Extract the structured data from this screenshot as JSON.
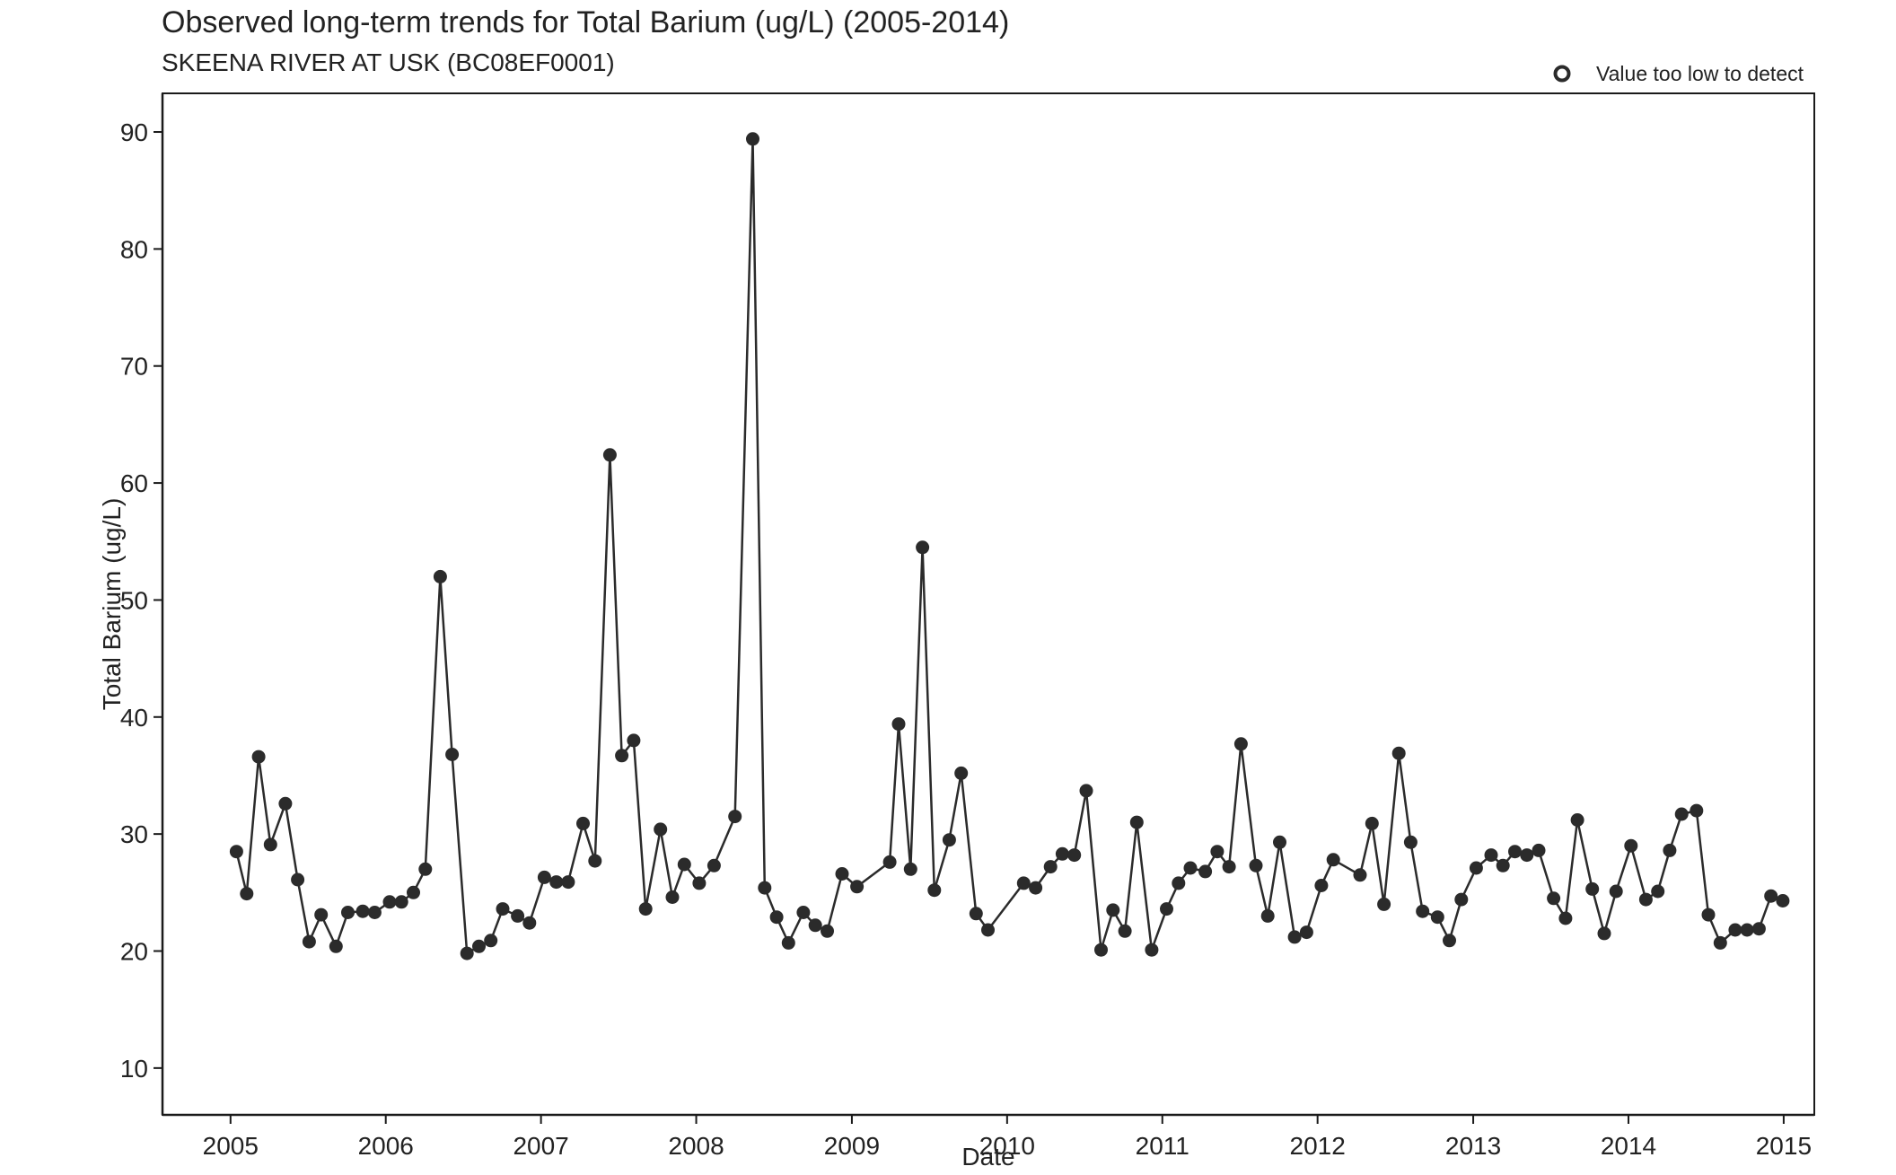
{
  "chart_data": {
    "type": "line",
    "title": "Observed long-term trends for Total Barium (ug/L) (2005-2014)",
    "subtitle": "SKEENA RIVER AT USK (BC08EF0001)",
    "xlabel": "Date",
    "ylabel": "Total Barium (ug/L)",
    "xlim": [
      "2004-07-25",
      "2015-03-14"
    ],
    "ylim": [
      6,
      93.3
    ],
    "x_ticks": [
      "2005",
      "2006",
      "2007",
      "2008",
      "2009",
      "2010",
      "2011",
      "2012",
      "2013",
      "2014",
      "2015"
    ],
    "y_ticks": [
      10,
      20,
      30,
      40,
      50,
      60,
      70,
      80,
      90
    ],
    "grid": false,
    "legend": {
      "position": "top-right",
      "entries": [
        {
          "label": "Value too low to detect",
          "marker": "open-circle"
        }
      ]
    },
    "colors": {
      "series": "#2b2b2b",
      "axis": "#1a1a1a"
    },
    "series": [
      {
        "points": [
          [
            "2005-01-15",
            28.5
          ],
          [
            "2005-02-08",
            24.9
          ],
          [
            "2005-03-08",
            36.6
          ],
          [
            "2005-04-05",
            29.1
          ],
          [
            "2005-05-10",
            32.6
          ],
          [
            "2005-06-08",
            26.1
          ],
          [
            "2005-07-05",
            20.8
          ],
          [
            "2005-08-02",
            23.1
          ],
          [
            "2005-09-06",
            20.4
          ],
          [
            "2005-10-04",
            23.3
          ],
          [
            "2005-11-08",
            23.4
          ],
          [
            "2005-12-06",
            23.3
          ],
          [
            "2006-01-10",
            24.2
          ],
          [
            "2006-02-07",
            24.2
          ],
          [
            "2006-03-07",
            25.0
          ],
          [
            "2006-04-04",
            27.0
          ],
          [
            "2006-05-09",
            52.0
          ],
          [
            "2006-06-06",
            36.8
          ],
          [
            "2006-07-11",
            19.8
          ],
          [
            "2006-08-08",
            20.4
          ],
          [
            "2006-09-05",
            20.9
          ],
          [
            "2006-10-03",
            23.6
          ],
          [
            "2006-11-07",
            23.0
          ],
          [
            "2006-12-05",
            22.4
          ],
          [
            "2007-01-09",
            26.3
          ],
          [
            "2007-02-06",
            25.9
          ],
          [
            "2007-03-06",
            25.9
          ],
          [
            "2007-04-10",
            30.9
          ],
          [
            "2007-05-08",
            27.7
          ],
          [
            "2007-06-12",
            62.4
          ],
          [
            "2007-07-10",
            36.7
          ],
          [
            "2007-08-07",
            38.0
          ],
          [
            "2007-09-04",
            23.6
          ],
          [
            "2007-10-09",
            30.4
          ],
          [
            "2007-11-06",
            24.6
          ],
          [
            "2007-12-04",
            27.4
          ],
          [
            "2008-01-08",
            25.8
          ],
          [
            "2008-02-12",
            27.3
          ],
          [
            "2008-04-01",
            31.5
          ],
          [
            "2008-05-13",
            89.4
          ],
          [
            "2008-06-10",
            25.4
          ],
          [
            "2008-07-08",
            22.9
          ],
          [
            "2008-08-05",
            20.7
          ],
          [
            "2008-09-09",
            23.3
          ],
          [
            "2008-10-07",
            22.2
          ],
          [
            "2008-11-04",
            21.7
          ],
          [
            "2008-12-09",
            26.6
          ],
          [
            "2009-01-13",
            25.5
          ],
          [
            "2009-03-31",
            27.6
          ],
          [
            "2009-04-21",
            39.4
          ],
          [
            "2009-05-19",
            27.0
          ],
          [
            "2009-06-16",
            54.5
          ],
          [
            "2009-07-14",
            25.2
          ],
          [
            "2009-08-18",
            29.5
          ],
          [
            "2009-09-15",
            35.2
          ],
          [
            "2009-10-20",
            23.2
          ],
          [
            "2009-11-17",
            21.8
          ],
          [
            "2010-02-09",
            25.8
          ],
          [
            "2010-03-09",
            25.4
          ],
          [
            "2010-04-13",
            27.2
          ],
          [
            "2010-05-11",
            28.3
          ],
          [
            "2010-06-08",
            28.2
          ],
          [
            "2010-07-06",
            33.7
          ],
          [
            "2010-08-10",
            20.1
          ],
          [
            "2010-09-07",
            23.5
          ],
          [
            "2010-10-05",
            21.7
          ],
          [
            "2010-11-02",
            31.0
          ],
          [
            "2010-12-07",
            20.1
          ],
          [
            "2011-01-11",
            23.6
          ],
          [
            "2011-02-08",
            25.8
          ],
          [
            "2011-03-08",
            27.1
          ],
          [
            "2011-04-12",
            26.8
          ],
          [
            "2011-05-10",
            28.5
          ],
          [
            "2011-06-07",
            27.2
          ],
          [
            "2011-07-05",
            37.7
          ],
          [
            "2011-08-09",
            27.3
          ],
          [
            "2011-09-06",
            23.0
          ],
          [
            "2011-10-04",
            29.3
          ],
          [
            "2011-11-08",
            21.2
          ],
          [
            "2011-12-06",
            21.6
          ],
          [
            "2012-01-10",
            25.6
          ],
          [
            "2012-02-07",
            27.8
          ],
          [
            "2012-04-10",
            26.5
          ],
          [
            "2012-05-08",
            30.9
          ],
          [
            "2012-06-05",
            24.0
          ],
          [
            "2012-07-10",
            36.9
          ],
          [
            "2012-08-07",
            29.3
          ],
          [
            "2012-09-04",
            23.4
          ],
          [
            "2012-10-09",
            22.9
          ],
          [
            "2012-11-06",
            20.9
          ],
          [
            "2012-12-04",
            24.4
          ],
          [
            "2013-01-08",
            27.1
          ],
          [
            "2013-02-12",
            28.2
          ],
          [
            "2013-03-12",
            27.3
          ],
          [
            "2013-04-09",
            28.5
          ],
          [
            "2013-05-07",
            28.2
          ],
          [
            "2013-06-04",
            28.6
          ],
          [
            "2013-07-09",
            24.5
          ],
          [
            "2013-08-06",
            22.8
          ],
          [
            "2013-09-03",
            31.2
          ],
          [
            "2013-10-08",
            25.3
          ],
          [
            "2013-11-05",
            21.5
          ],
          [
            "2013-12-03",
            25.1
          ],
          [
            "2014-01-07",
            29.0
          ],
          [
            "2014-02-11",
            24.4
          ],
          [
            "2014-03-11",
            25.1
          ],
          [
            "2014-04-08",
            28.6
          ],
          [
            "2014-05-06",
            31.7
          ],
          [
            "2014-06-10",
            32.0
          ],
          [
            "2014-07-08",
            23.1
          ],
          [
            "2014-08-05",
            20.7
          ],
          [
            "2014-09-09",
            21.8
          ],
          [
            "2014-10-07",
            21.8
          ],
          [
            "2014-11-04",
            21.9
          ],
          [
            "2014-12-02",
            24.7
          ],
          [
            "2014-12-30",
            24.3
          ]
        ]
      }
    ]
  }
}
